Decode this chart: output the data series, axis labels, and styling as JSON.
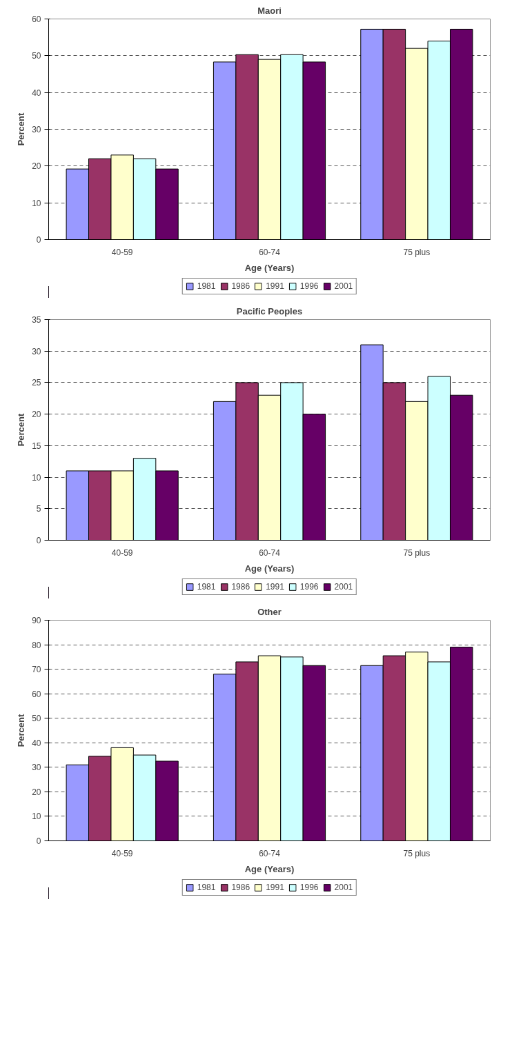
{
  "chart_data": [
    {
      "type": "bar",
      "title": "Maori",
      "xlabel": "Age (Years)",
      "ylabel": "Percent",
      "categories": [
        "40-59",
        "60-74",
        "75 plus"
      ],
      "ylim": [
        0,
        60
      ],
      "yticks": [
        0,
        10,
        20,
        30,
        40,
        50,
        60
      ],
      "grid": "y",
      "legend": "bottom",
      "series": [
        {
          "name": "1981",
          "color": "#9999ff",
          "values": [
            19.2,
            48.3,
            57.2
          ]
        },
        {
          "name": "1986",
          "color": "#993366",
          "values": [
            22,
            50.3,
            57.2
          ]
        },
        {
          "name": "1991",
          "color": "#ffffcc",
          "values": [
            23,
            49,
            52
          ]
        },
        {
          "name": "1996",
          "color": "#ccffff",
          "values": [
            22,
            50.3,
            54
          ]
        },
        {
          "name": "2001",
          "color": "#660066",
          "values": [
            19.2,
            48.3,
            57.2
          ]
        }
      ]
    },
    {
      "type": "bar",
      "title": "Pacific Peoples",
      "xlabel": "Age (Years)",
      "ylabel": "Percent",
      "categories": [
        "40-59",
        "60-74",
        "75 plus"
      ],
      "ylim": [
        0,
        35
      ],
      "yticks": [
        0,
        5,
        10,
        15,
        20,
        25,
        30,
        35
      ],
      "grid": "y",
      "legend": "bottom",
      "series": [
        {
          "name": "1981",
          "color": "#9999ff",
          "values": [
            11,
            22,
            31
          ]
        },
        {
          "name": "1986",
          "color": "#993366",
          "values": [
            11,
            25,
            25
          ]
        },
        {
          "name": "1991",
          "color": "#ffffcc",
          "values": [
            11,
            23,
            22
          ]
        },
        {
          "name": "1996",
          "color": "#ccffff",
          "values": [
            13,
            25,
            26
          ]
        },
        {
          "name": "2001",
          "color": "#660066",
          "values": [
            11,
            20,
            23
          ]
        }
      ]
    },
    {
      "type": "bar",
      "title": "Other",
      "xlabel": "Age (Years)",
      "ylabel": "Percent",
      "categories": [
        "40-59",
        "60-74",
        "75 plus"
      ],
      "ylim": [
        0,
        90
      ],
      "yticks": [
        0,
        10,
        20,
        30,
        40,
        50,
        60,
        70,
        80,
        90
      ],
      "grid": "y",
      "legend": "bottom",
      "series": [
        {
          "name": "1981",
          "color": "#9999ff",
          "values": [
            31,
            68,
            71.5
          ]
        },
        {
          "name": "1986",
          "color": "#993366",
          "values": [
            34.5,
            73,
            75.5
          ]
        },
        {
          "name": "1991",
          "color": "#ffffcc",
          "values": [
            38,
            75.5,
            77
          ]
        },
        {
          "name": "1996",
          "color": "#ccffff",
          "values": [
            35,
            75,
            73
          ]
        },
        {
          "name": "2001",
          "color": "#660066",
          "values": [
            32.5,
            71.5,
            79
          ]
        }
      ]
    }
  ]
}
